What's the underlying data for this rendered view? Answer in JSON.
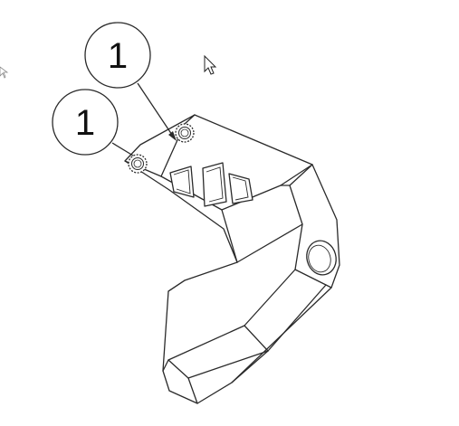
{
  "drawing": {
    "balloons": [
      {
        "label": "1"
      },
      {
        "label": "1"
      }
    ],
    "cursor": "arrow-pointer-icon"
  }
}
